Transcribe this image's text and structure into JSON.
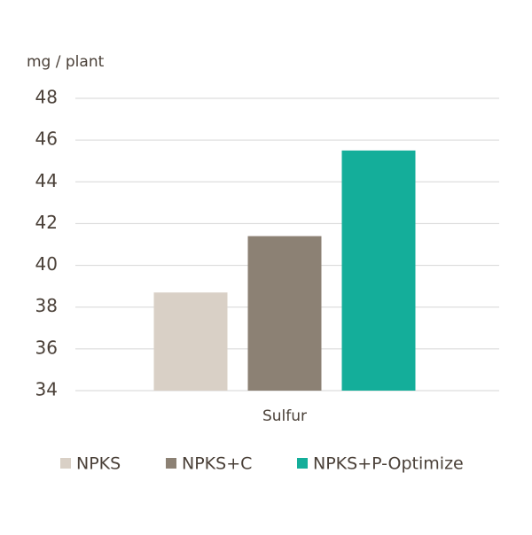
{
  "chart_data": {
    "type": "bar",
    "y_label": "mg / plant",
    "categories": [
      "Sulfur"
    ],
    "series": [
      {
        "name": "NPKS",
        "color": "#d9d0c6",
        "values": [
          38.7
        ]
      },
      {
        "name": "NPKS+C",
        "color": "#8c8174",
        "values": [
          41.4
        ]
      },
      {
        "name": "NPKS+P-Optimize",
        "color": "#14ae9a",
        "values": [
          45.5
        ]
      }
    ],
    "ylim": [
      34,
      48
    ],
    "yticks": [
      34,
      36,
      38,
      40,
      42,
      44,
      46,
      48
    ],
    "grid": true,
    "legend": "bottom"
  }
}
